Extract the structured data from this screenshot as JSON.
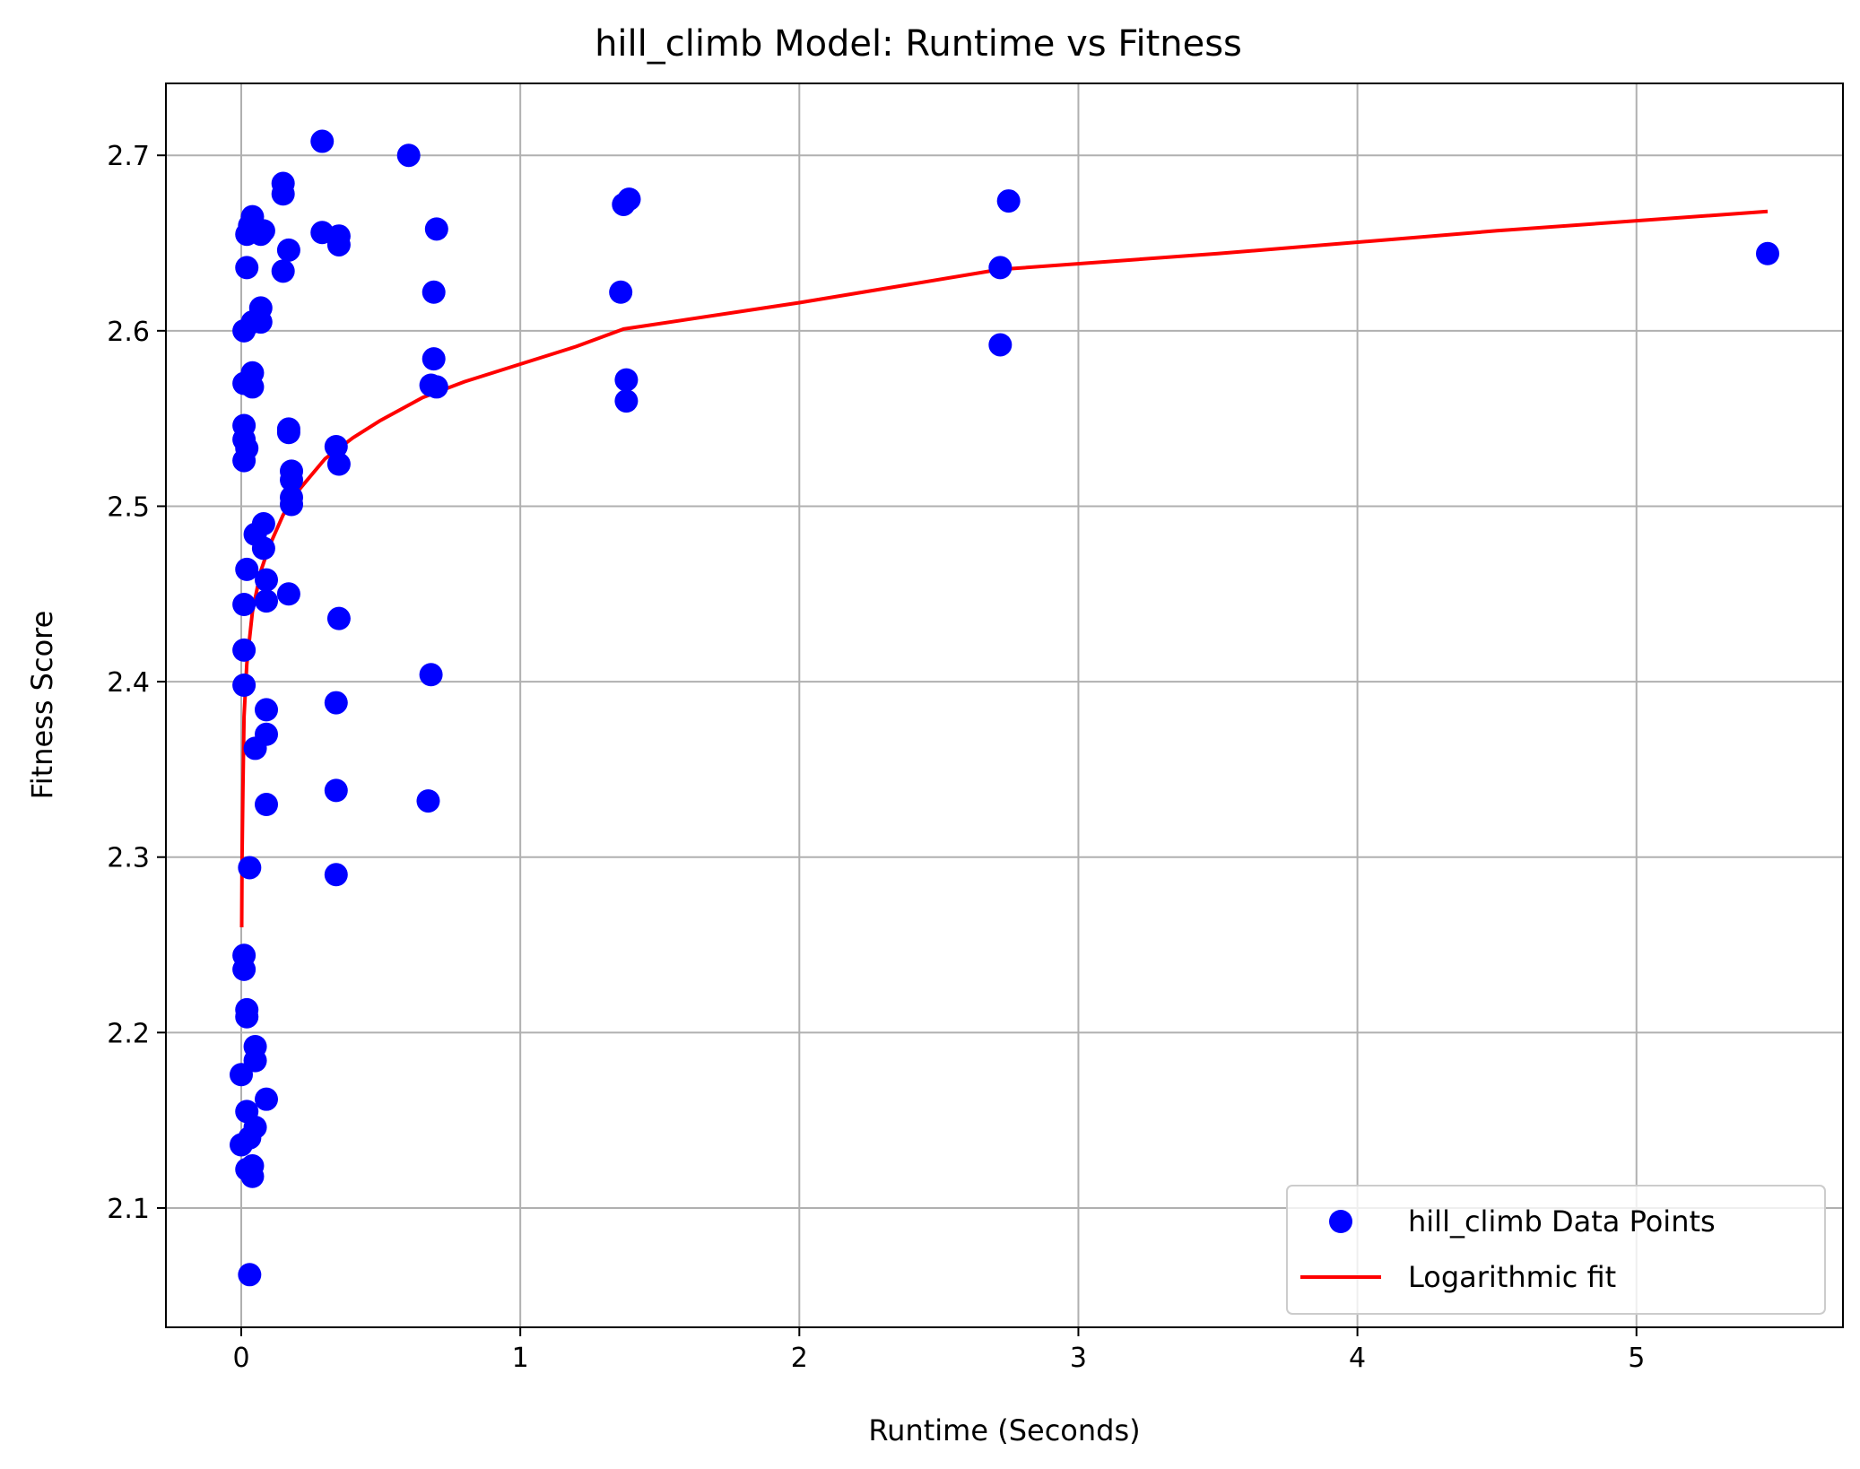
{
  "chart_data": {
    "type": "scatter",
    "title": "hill_climb Model: Runtime vs Fitness",
    "xlabel": "Runtime (Seconds)",
    "ylabel": "Fitness Score",
    "xlim": [
      -0.27,
      5.74
    ],
    "ylim": [
      2.032,
      2.741
    ],
    "xticks": [
      0,
      1,
      2,
      3,
      4,
      5
    ],
    "yticks": [
      2.1,
      2.2,
      2.3,
      2.4,
      2.5,
      2.6,
      2.7
    ],
    "xtick_labels": [
      "0",
      "1",
      "2",
      "3",
      "4",
      "5"
    ],
    "ytick_labels": [
      "2.1",
      "2.2",
      "2.3",
      "2.4",
      "2.5",
      "2.6",
      "2.7"
    ],
    "grid": true,
    "legend_position": "bottom-right",
    "series": [
      {
        "name": "hill_climb Data Points",
        "type": "scatter",
        "color": "#0000ff",
        "points": [
          [
            0.29,
            2.708
          ],
          [
            0.6,
            2.7
          ],
          [
            0.15,
            2.684
          ],
          [
            0.15,
            2.678
          ],
          [
            1.39,
            2.675
          ],
          [
            1.37,
            2.672
          ],
          [
            2.75,
            2.674
          ],
          [
            0.04,
            2.665
          ],
          [
            0.03,
            2.66
          ],
          [
            0.08,
            2.657
          ],
          [
            0.02,
            2.655
          ],
          [
            0.07,
            2.655
          ],
          [
            0.29,
            2.656
          ],
          [
            0.35,
            2.654
          ],
          [
            0.35,
            2.649
          ],
          [
            0.7,
            2.658
          ],
          [
            0.17,
            2.646
          ],
          [
            0.02,
            2.636
          ],
          [
            0.15,
            2.634
          ],
          [
            2.72,
            2.636
          ],
          [
            5.47,
            2.644
          ],
          [
            0.69,
            2.622
          ],
          [
            1.36,
            2.622
          ],
          [
            0.07,
            2.613
          ],
          [
            0.04,
            2.605
          ],
          [
            0.07,
            2.605
          ],
          [
            0.01,
            2.6
          ],
          [
            2.72,
            2.592
          ],
          [
            0.69,
            2.584
          ],
          [
            0.04,
            2.576
          ],
          [
            0.01,
            2.57
          ],
          [
            0.04,
            2.568
          ],
          [
            0.68,
            2.569
          ],
          [
            0.7,
            2.568
          ],
          [
            1.38,
            2.572
          ],
          [
            1.38,
            2.56
          ],
          [
            0.01,
            2.546
          ],
          [
            0.17,
            2.544
          ],
          [
            0.17,
            2.542
          ],
          [
            0.01,
            2.538
          ],
          [
            0.02,
            2.533
          ],
          [
            0.34,
            2.534
          ],
          [
            0.01,
            2.526
          ],
          [
            0.35,
            2.524
          ],
          [
            0.18,
            2.52
          ],
          [
            0.18,
            2.515
          ],
          [
            0.18,
            2.505
          ],
          [
            0.18,
            2.501
          ],
          [
            0.08,
            2.49
          ],
          [
            0.05,
            2.484
          ],
          [
            0.08,
            2.476
          ],
          [
            0.02,
            2.464
          ],
          [
            0.09,
            2.458
          ],
          [
            0.17,
            2.45
          ],
          [
            0.09,
            2.446
          ],
          [
            0.01,
            2.444
          ],
          [
            0.35,
            2.436
          ],
          [
            0.01,
            2.418
          ],
          [
            0.68,
            2.404
          ],
          [
            0.01,
            2.398
          ],
          [
            0.34,
            2.388
          ],
          [
            0.09,
            2.384
          ],
          [
            0.09,
            2.37
          ],
          [
            0.05,
            2.362
          ],
          [
            0.34,
            2.338
          ],
          [
            0.67,
            2.332
          ],
          [
            0.09,
            2.33
          ],
          [
            0.03,
            2.294
          ],
          [
            0.34,
            2.29
          ],
          [
            0.01,
            2.244
          ],
          [
            0.01,
            2.236
          ],
          [
            0.02,
            2.213
          ],
          [
            0.02,
            2.209
          ],
          [
            0.05,
            2.192
          ],
          [
            0.05,
            2.184
          ],
          [
            0.0,
            2.176
          ],
          [
            0.09,
            2.162
          ],
          [
            0.02,
            2.155
          ],
          [
            0.05,
            2.146
          ],
          [
            0.03,
            2.14
          ],
          [
            0.0,
            2.136
          ],
          [
            0.04,
            2.124
          ],
          [
            0.02,
            2.122
          ],
          [
            0.04,
            2.118
          ],
          [
            0.03,
            2.062
          ]
        ]
      },
      {
        "name": "Logarithmic fit",
        "type": "line",
        "color": "#ff0000",
        "points": [
          [
            0.0017,
            2.26
          ],
          [
            0.003,
            2.3
          ],
          [
            0.006,
            2.34
          ],
          [
            0.01,
            2.38
          ],
          [
            0.02,
            2.41
          ],
          [
            0.04,
            2.44
          ],
          [
            0.07,
            2.463
          ],
          [
            0.1,
            2.477
          ],
          [
            0.15,
            2.495
          ],
          [
            0.2,
            2.508
          ],
          [
            0.3,
            2.527
          ],
          [
            0.4,
            2.539
          ],
          [
            0.5,
            2.549
          ],
          [
            0.65,
            2.562
          ],
          [
            0.8,
            2.571
          ],
          [
            1.0,
            2.581
          ],
          [
            1.2,
            2.591
          ],
          [
            1.37,
            2.601
          ],
          [
            2.0,
            2.616
          ],
          [
            2.72,
            2.635
          ],
          [
            3.5,
            2.644
          ],
          [
            4.5,
            2.657
          ],
          [
            5.47,
            2.668
          ]
        ]
      }
    ]
  }
}
